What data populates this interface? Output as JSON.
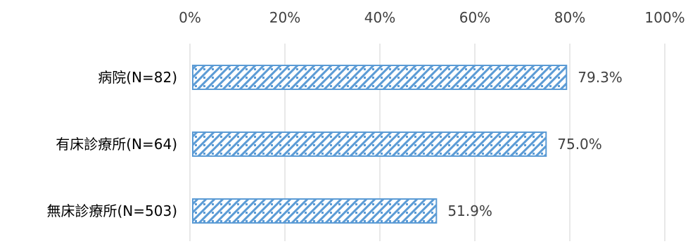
{
  "chart_data": {
    "type": "bar",
    "orientation": "horizontal",
    "categories": [
      "病院(N=82)",
      "有床診療所(N=64)",
      "無床診療所(N=503)"
    ],
    "values": [
      79.3,
      75.0,
      51.9
    ],
    "value_labels": [
      "79.3%",
      "75.0%",
      "51.9%"
    ],
    "xlim": [
      0,
      100
    ],
    "x_ticks": [
      0,
      20,
      40,
      60,
      80,
      100
    ],
    "x_tick_labels": [
      "0%",
      "20%",
      "40%",
      "60%",
      "80%",
      "100%"
    ],
    "x_axis_position": "top",
    "grid": true,
    "legend": "none",
    "bar_fill_pattern": "diagonal-checker",
    "colors": {
      "bar_outline": "#5b9bd5",
      "bar_pattern": "#5b9bd5",
      "bar_background": "#ffffff",
      "gridline": "#d9d9d9",
      "tick_text": "#404040",
      "category_text": "#000000"
    }
  }
}
